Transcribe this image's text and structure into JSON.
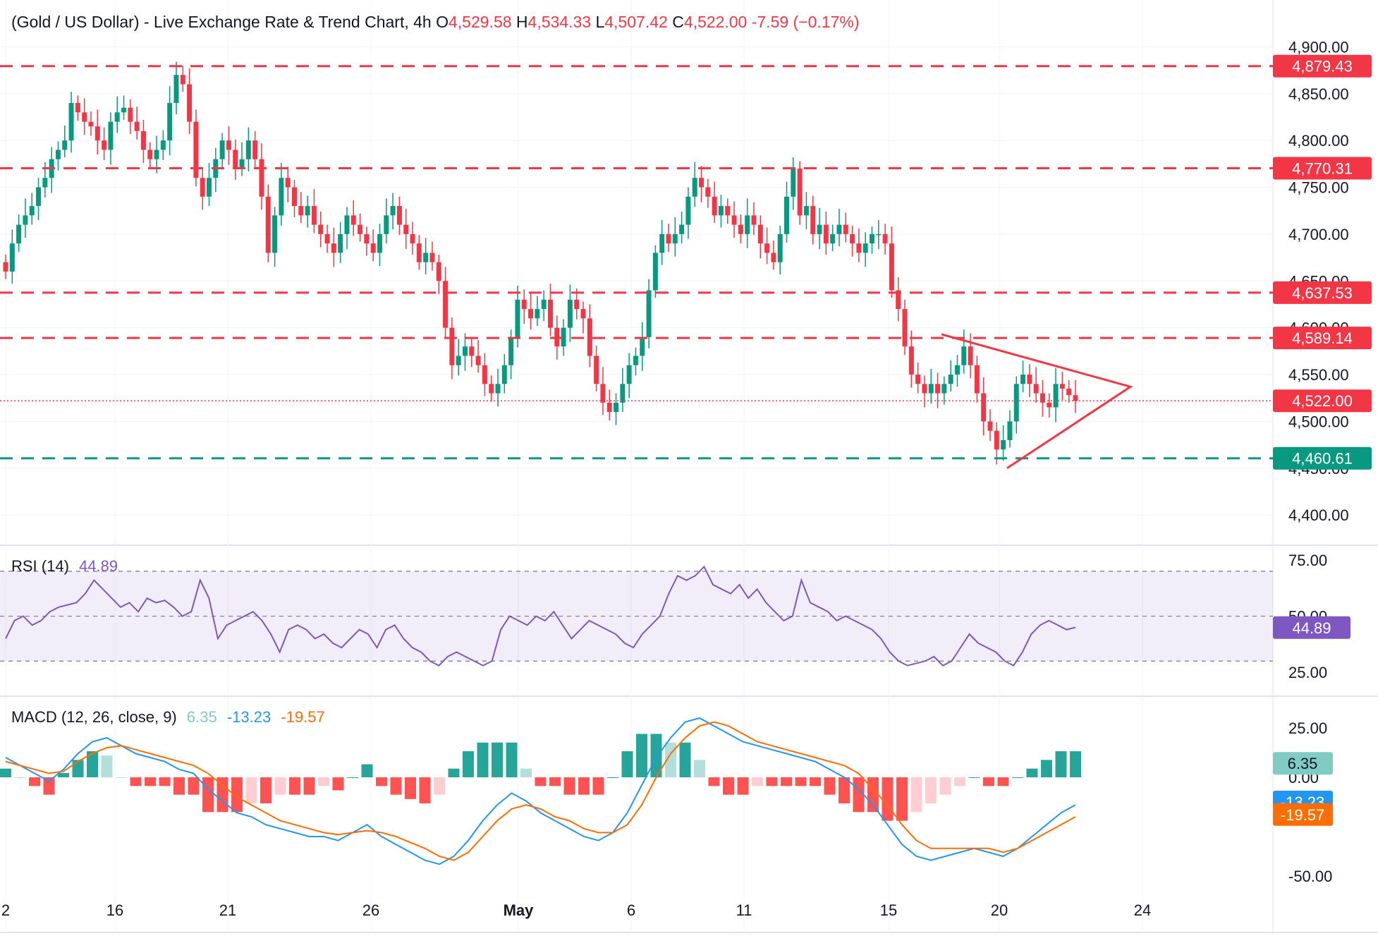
{
  "header": {
    "symbol_title": "(Gold / US Dollar) - Live Exchange Rate & Trend Chart, 4h",
    "o_key": "O",
    "o_val": "4,529.58",
    "h_key": "H",
    "h_val": "4,534.33",
    "l_key": "L",
    "l_val": "4,507.42",
    "c_key": "C",
    "c_val": "4,522.00",
    "change": "-7.59 (−0.17%)"
  },
  "rsi": {
    "title": "RSI (14)",
    "value": "44.89",
    "color": "#7e57c2"
  },
  "macd": {
    "title": "MACD (12, 26, close, 9)",
    "hist_value": "6.35",
    "macd_value": "-13.23",
    "signal_value": "-19.57",
    "hist_color": "#80cbc4",
    "macd_color": "#2196f3",
    "signal_color": "#ff6d00"
  },
  "chart_data": [
    {
      "type": "candlestick",
      "title": "(Gold / US Dollar) - Live Exchange Rate & Trend Chart, 4h",
      "x_ticks": [
        "2",
        "16",
        "21",
        "26",
        "May",
        "6",
        "11",
        "15",
        "20",
        "24"
      ],
      "y_ticks": [
        "4,900.00",
        "4,850.00",
        "4,800.00",
        "4,750.00",
        "4,700.00",
        "4,650.00",
        "4,600.00",
        "4,550.00",
        "4,500.00",
        "4,450.00",
        "4,400.00"
      ],
      "ylim": [
        4370,
        4950
      ],
      "horizontal_levels": [
        {
          "value": 4879.43,
          "label": "4,879.43",
          "color": "#f23645"
        },
        {
          "value": 4770.31,
          "label": "4,770.31",
          "color": "#f23645"
        },
        {
          "value": 4637.53,
          "label": "4,637.53",
          "color": "#f23645"
        },
        {
          "value": 4589.14,
          "label": "4,589.14",
          "color": "#f23645"
        },
        {
          "value": 4460.61,
          "label": "4,460.61",
          "color": "#089981"
        }
      ],
      "last_price": {
        "value": 4522.0,
        "label": "4,522.00",
        "color": "#f23645"
      },
      "closes": [
        4660,
        4690,
        4710,
        4720,
        4730,
        4750,
        4760,
        4780,
        4790,
        4800,
        4840,
        4830,
        4820,
        4815,
        4800,
        4790,
        4820,
        4830,
        4835,
        4820,
        4810,
        4790,
        4780,
        4790,
        4800,
        4840,
        4870,
        4860,
        4820,
        4760,
        4740,
        4760,
        4780,
        4800,
        4790,
        4770,
        4780,
        4800,
        4780,
        4740,
        4680,
        4720,
        4760,
        4750,
        4730,
        4720,
        4730,
        4710,
        4700,
        4690,
        4680,
        4700,
        4720,
        4710,
        4700,
        4690,
        4680,
        4700,
        4720,
        4730,
        4710,
        4700,
        4690,
        4670,
        4680,
        4670,
        4650,
        4600,
        4560,
        4570,
        4580,
        4570,
        4560,
        4540,
        4530,
        4540,
        4560,
        4590,
        4630,
        4620,
        4610,
        4620,
        4630,
        4600,
        4580,
        4600,
        4630,
        4620,
        4610,
        4570,
        4540,
        4520,
        4510,
        4520,
        4540,
        4560,
        4570,
        4590,
        4640,
        4680,
        4700,
        4690,
        4700,
        4710,
        4740,
        4760,
        4750,
        4740,
        4720,
        4730,
        4720,
        4710,
        4700,
        4720,
        4710,
        4690,
        4680,
        4670,
        4700,
        4740,
        4770,
        4720,
        4730,
        4700,
        4710,
        4690,
        4700,
        4710,
        4700,
        4690,
        4680,
        4690,
        4700,
        4700,
        4690,
        4640,
        4620,
        4580,
        4550,
        4540,
        4530,
        4540,
        4530,
        4540,
        4550,
        4560,
        4580,
        4560,
        4530,
        4500,
        4490,
        4470,
        4480,
        4500,
        4540,
        4550,
        4540,
        4530,
        4520,
        4515,
        4540,
        4535,
        4528,
        4522
      ],
      "rsi": {
        "values": [
          40,
          48,
          50,
          46,
          48,
          52,
          54,
          55,
          56,
          60,
          66,
          62,
          58,
          54,
          56,
          52,
          58,
          56,
          57,
          54,
          50,
          52,
          66,
          58,
          40,
          46,
          48,
          50,
          52,
          48,
          42,
          34,
          44,
          46,
          44,
          40,
          42,
          38,
          36,
          40,
          44,
          42,
          36,
          44,
          46,
          40,
          36,
          34,
          30,
          28,
          32,
          34,
          32,
          30,
          28,
          30,
          44,
          50,
          48,
          46,
          50,
          48,
          52,
          46,
          40,
          44,
          48,
          46,
          44,
          42,
          38,
          36,
          42,
          46,
          50,
          60,
          68,
          66,
          68,
          72,
          64,
          62,
          60,
          64,
          58,
          62,
          56,
          52,
          48,
          50,
          66,
          56,
          54,
          52,
          48,
          50,
          48,
          46,
          44,
          40,
          34,
          30,
          28,
          29,
          30,
          32,
          28,
          30,
          36,
          42,
          38,
          36,
          34,
          30,
          28,
          34,
          42,
          46,
          48,
          46,
          44,
          45
        ],
        "levels": [
          70,
          50,
          30
        ],
        "ylim": [
          15,
          80
        ],
        "y_ticks": [
          "75.00",
          "50.00",
          "25.00"
        ]
      },
      "macd": {
        "macd_line": [
          10,
          6,
          2,
          -2,
          4,
          12,
          18,
          20,
          16,
          12,
          10,
          8,
          4,
          2,
          -6,
          -12,
          -18,
          -20,
          -24,
          -26,
          -28,
          -30,
          -30,
          -32,
          -28,
          -24,
          -30,
          -34,
          -38,
          -42,
          -44,
          -40,
          -32,
          -22,
          -14,
          -8,
          -12,
          -18,
          -22,
          -26,
          -30,
          -32,
          -28,
          -18,
          -4,
          10,
          20,
          28,
          30,
          26,
          22,
          18,
          16,
          14,
          12,
          10,
          8,
          4,
          0,
          -6,
          -14,
          -24,
          -34,
          -40,
          -42,
          -40,
          -38,
          -36,
          -38,
          -40,
          -36,
          -30,
          -24,
          -18,
          -14
        ],
        "signal_line": [
          8,
          6,
          4,
          2,
          3,
          8,
          12,
          15,
          16,
          14,
          12,
          10,
          8,
          6,
          2,
          -4,
          -10,
          -14,
          -18,
          -22,
          -24,
          -26,
          -28,
          -29,
          -28,
          -27,
          -28,
          -30,
          -33,
          -36,
          -40,
          -42,
          -38,
          -30,
          -22,
          -16,
          -14,
          -16,
          -20,
          -22,
          -26,
          -28,
          -28,
          -24,
          -14,
          0,
          12,
          20,
          26,
          28,
          26,
          22,
          18,
          16,
          14,
          12,
          10,
          8,
          6,
          2,
          -6,
          -14,
          -24,
          -32,
          -36,
          -36,
          -36,
          -36,
          -36,
          -38,
          -36,
          -32,
          -28,
          -24,
          -20
        ],
        "ylim": [
          -60,
          40
        ],
        "y_ticks": [
          "25.00",
          "0.00",
          "-50.00"
        ]
      }
    }
  ]
}
